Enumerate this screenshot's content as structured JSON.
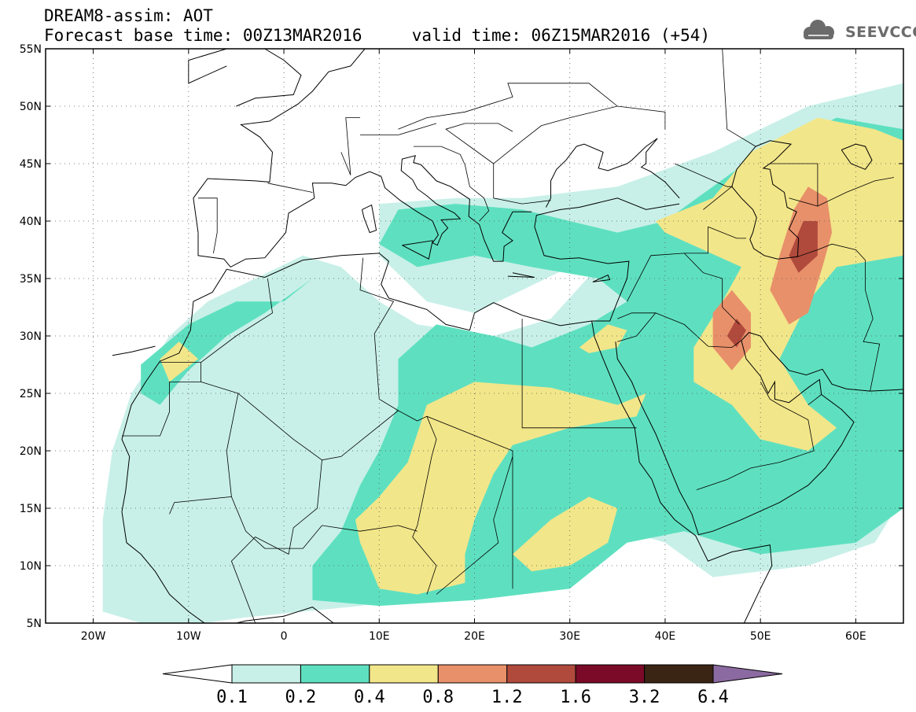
{
  "title": {
    "line1": "DREAM8-assim: AOT",
    "line2": "Forecast base time: 00Z13MAR2016     valid time: 06Z15MAR2016 (+54)"
  },
  "logo": {
    "text": "SEEVCCC",
    "icon": "cloud-icon"
  },
  "chart_data": {
    "type": "heatmap",
    "variable": "AOT",
    "base_time": "00Z13MAR2016",
    "valid_time": "06Z15MAR2016",
    "lead_hours": 54,
    "xlim": [
      -25,
      65
    ],
    "ylim": [
      5,
      55
    ],
    "grid": true,
    "x_ticks": [
      {
        "value": -20,
        "label": "20W"
      },
      {
        "value": -10,
        "label": "10W"
      },
      {
        "value": 0,
        "label": "0"
      },
      {
        "value": 10,
        "label": "10E"
      },
      {
        "value": 20,
        "label": "20E"
      },
      {
        "value": 30,
        "label": "30E"
      },
      {
        "value": 40,
        "label": "40E"
      },
      {
        "value": 50,
        "label": "50E"
      },
      {
        "value": 60,
        "label": "60E"
      }
    ],
    "y_ticks": [
      {
        "value": 5,
        "label": "5N"
      },
      {
        "value": 10,
        "label": "10N"
      },
      {
        "value": 15,
        "label": "15N"
      },
      {
        "value": 20,
        "label": "20N"
      },
      {
        "value": 25,
        "label": "25N"
      },
      {
        "value": 30,
        "label": "30N"
      },
      {
        "value": 35,
        "label": "35N"
      },
      {
        "value": 40,
        "label": "40N"
      },
      {
        "value": 45,
        "label": "45N"
      },
      {
        "value": 50,
        "label": "50N"
      },
      {
        "value": 55,
        "label": "55N"
      }
    ],
    "colorbar": {
      "levels": [
        "0.1",
        "0.2",
        "0.4",
        "0.8",
        "1.2",
        "1.6",
        "3.2",
        "6.4"
      ],
      "colors": [
        "#ffffff",
        "#c8f0e8",
        "#5ee0c0",
        "#f2e68a",
        "#e8906a",
        "#b04a3c",
        "#7a0a28",
        "#3a2414",
        "#8a6aa0"
      ]
    },
    "regions": [
      {
        "level": "0.1-0.2",
        "color": "#c8f0e8",
        "lonlat": [
          [
            -19,
            6
          ],
          [
            -13,
            4.5
          ],
          [
            -4,
            5.5
          ],
          [
            8,
            6.5
          ],
          [
            20,
            8.5
          ],
          [
            26,
            8
          ],
          [
            30,
            8.5
          ],
          [
            36,
            13
          ],
          [
            40,
            12
          ],
          [
            45,
            9
          ],
          [
            55,
            10
          ],
          [
            62,
            12
          ],
          [
            65,
            16
          ],
          [
            65,
            52
          ],
          [
            55,
            50
          ],
          [
            45,
            46
          ],
          [
            35,
            43
          ],
          [
            25,
            42
          ],
          [
            18,
            42
          ],
          [
            10,
            41.5
          ],
          [
            10,
            37
          ],
          [
            15,
            33
          ],
          [
            20,
            32
          ],
          [
            25,
            34
          ],
          [
            30,
            36
          ],
          [
            34,
            37
          ],
          [
            28,
            31.5
          ],
          [
            22,
            30
          ],
          [
            14,
            31
          ],
          [
            10,
            33
          ],
          [
            6,
            36
          ],
          [
            2,
            37
          ],
          [
            -3,
            35
          ],
          [
            -8,
            33
          ],
          [
            -12,
            30
          ],
          [
            -16,
            25
          ],
          [
            -18,
            20
          ],
          [
            -19,
            14
          ]
        ]
      },
      {
        "level": "0.2-0.4",
        "color": "#5ee0c0",
        "lonlat": [
          [
            -15,
            27.5
          ],
          [
            -10,
            31
          ],
          [
            -5,
            33
          ],
          [
            0,
            33
          ],
          [
            3,
            35
          ],
          [
            -2,
            32
          ],
          [
            -6,
            30
          ],
          [
            -10,
            27
          ],
          [
            -13,
            24
          ],
          [
            -15,
            25
          ]
        ]
      },
      {
        "level": "0.2-0.4",
        "color": "#5ee0c0",
        "lonlat": [
          [
            3,
            7
          ],
          [
            10,
            6.5
          ],
          [
            20,
            7
          ],
          [
            30,
            8
          ],
          [
            36,
            12
          ],
          [
            42,
            13
          ],
          [
            50,
            11
          ],
          [
            60,
            12
          ],
          [
            65,
            15
          ],
          [
            65,
            48
          ],
          [
            58,
            49
          ],
          [
            50,
            46
          ],
          [
            45,
            43
          ],
          [
            40,
            40
          ],
          [
            35,
            39
          ],
          [
            30,
            40
          ],
          [
            25,
            41
          ],
          [
            18,
            41.5
          ],
          [
            12,
            41
          ],
          [
            10,
            38
          ],
          [
            14,
            36
          ],
          [
            20,
            37
          ],
          [
            26,
            36
          ],
          [
            33,
            35
          ],
          [
            36,
            33
          ],
          [
            32,
            31
          ],
          [
            26,
            29
          ],
          [
            22,
            30
          ],
          [
            16,
            31
          ],
          [
            12,
            28
          ],
          [
            12,
            24
          ],
          [
            10,
            20
          ],
          [
            8,
            17
          ],
          [
            6,
            13
          ],
          [
            3,
            10
          ]
        ]
      },
      {
        "level": "0.4-0.8",
        "color": "#f2e68a",
        "lonlat": [
          [
            7.5,
            14
          ],
          [
            10,
            16
          ],
          [
            13,
            19
          ],
          [
            15,
            24
          ],
          [
            20,
            26
          ],
          [
            28,
            25.5
          ],
          [
            35,
            24
          ],
          [
            38,
            25
          ],
          [
            37,
            23
          ],
          [
            30,
            22
          ],
          [
            24,
            20.5
          ],
          [
            22,
            18
          ],
          [
            20,
            14
          ],
          [
            19,
            11
          ],
          [
            19,
            8.5
          ],
          [
            14,
            7.5
          ],
          [
            10,
            8
          ],
          [
            9,
            10
          ],
          [
            8,
            12
          ]
        ]
      },
      {
        "level": "0.4-0.8",
        "color": "#f2e68a",
        "lonlat": [
          [
            24,
            11
          ],
          [
            28,
            14
          ],
          [
            32,
            16
          ],
          [
            35,
            15
          ],
          [
            34,
            12
          ],
          [
            30,
            10
          ],
          [
            26,
            9.5
          ]
        ]
      },
      {
        "level": "0.4-0.8",
        "color": "#f2e68a",
        "lonlat": [
          [
            31,
            29
          ],
          [
            34,
            31
          ],
          [
            36,
            30.5
          ],
          [
            35,
            29
          ],
          [
            32,
            28.5
          ]
        ]
      },
      {
        "level": "0.4-0.8",
        "color": "#f2e68a",
        "lonlat": [
          [
            -12,
            26
          ],
          [
            -9,
            28
          ],
          [
            -11,
            29.5
          ],
          [
            -13,
            28
          ]
        ]
      },
      {
        "level": "0.4-0.8",
        "color": "#f2e68a",
        "lonlat": [
          [
            39,
            40
          ],
          [
            45,
            42
          ],
          [
            49,
            46
          ],
          [
            56,
            49
          ],
          [
            62,
            48
          ],
          [
            65,
            47
          ],
          [
            65,
            37
          ],
          [
            58,
            36
          ],
          [
            55,
            33
          ],
          [
            52,
            28
          ],
          [
            55,
            24
          ],
          [
            58,
            22
          ],
          [
            55,
            20
          ],
          [
            50,
            21
          ],
          [
            47,
            24
          ],
          [
            43,
            26
          ],
          [
            43,
            29
          ],
          [
            46,
            33
          ],
          [
            48,
            36
          ],
          [
            44,
            37.5
          ],
          [
            40,
            39
          ]
        ]
      },
      {
        "level": "0.8-1.2",
        "color": "#e8906a",
        "lonlat": [
          [
            52,
            37
          ],
          [
            53.5,
            41
          ],
          [
            55,
            43
          ],
          [
            57,
            42
          ],
          [
            57.5,
            39
          ],
          [
            56.5,
            36
          ],
          [
            55,
            32
          ],
          [
            53,
            31
          ],
          [
            51,
            34
          ]
        ]
      },
      {
        "level": "0.8-1.2",
        "color": "#e8906a",
        "lonlat": [
          [
            45,
            32
          ],
          [
            47,
            34
          ],
          [
            49,
            32
          ],
          [
            49,
            29
          ],
          [
            47,
            27
          ],
          [
            45,
            29
          ]
        ]
      },
      {
        "level": "1.2-1.6",
        "color": "#b04a3c",
        "lonlat": [
          [
            53,
            37
          ],
          [
            54.5,
            40
          ],
          [
            56,
            40
          ],
          [
            56,
            37
          ],
          [
            54,
            35.5
          ]
        ]
      },
      {
        "level": "1.2-1.6",
        "color": "#b04a3c",
        "lonlat": [
          [
            46.5,
            30
          ],
          [
            47.5,
            31.5
          ],
          [
            48.5,
            30.5
          ],
          [
            47.5,
            29
          ]
        ]
      }
    ]
  }
}
